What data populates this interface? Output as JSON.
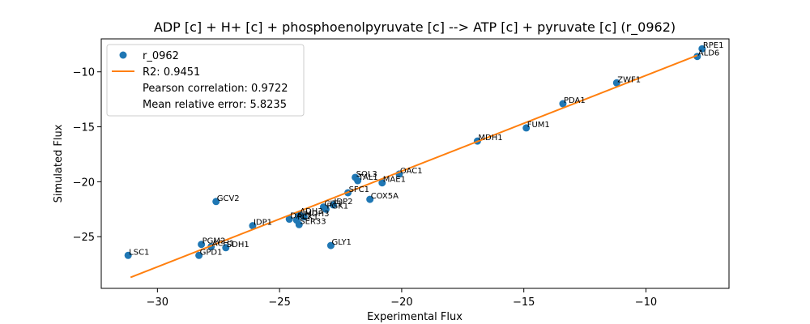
{
  "chart_data": {
    "type": "scatter",
    "title": "ADP [c] + H+ [c] + phosphoenolpyruvate [c] --> ATP [c] + pyruvate [c] (r_0962)",
    "xlabel": "Experimental Flux",
    "ylabel": "Simulated Flux",
    "xlim": [
      -32.3,
      -6.6
    ],
    "ylim": [
      -29.7,
      -7.0
    ],
    "xticks": [
      -30,
      -25,
      -20,
      -15,
      -10
    ],
    "yticks": [
      -25,
      -20,
      -15,
      -10
    ],
    "xtick_labels": [
      "−30",
      "−25",
      "−20",
      "−15",
      "−10"
    ],
    "ytick_labels": [
      "−25",
      "−20",
      "−15",
      "−10"
    ],
    "colors": {
      "points": "#1f77b4",
      "fit": "#ff7f0e"
    },
    "fit_line": {
      "x": [
        -31.1,
        -7.9
      ],
      "y": [
        -28.7,
        -8.5
      ]
    },
    "legend": {
      "placement": "upper-left",
      "entries": [
        {
          "label": "r_0962",
          "marker": "point"
        },
        {
          "label": "R2: 0.9451",
          "marker": "line"
        },
        {
          "label": "Pearson correlation: 0.9722",
          "marker": "none"
        },
        {
          "label": "Mean relative error: 5.8235",
          "marker": "none"
        }
      ]
    },
    "points": [
      {
        "label": "RPE1",
        "x": -7.7,
        "y": -7.9
      },
      {
        "label": "ALD6",
        "x": -7.9,
        "y": -8.6
      },
      {
        "label": "ZWF1",
        "x": -11.2,
        "y": -11.0
      },
      {
        "label": "PDA1",
        "x": -13.4,
        "y": -12.9
      },
      {
        "label": "FUM1",
        "x": -14.9,
        "y": -15.1
      },
      {
        "label": "MDH1",
        "x": -16.9,
        "y": -16.3
      },
      {
        "label": "OAC1",
        "x": -20.1,
        "y": -19.3
      },
      {
        "label": "SOL3",
        "x": -21.9,
        "y": -19.6
      },
      {
        "label": "TAL1",
        "x": -21.8,
        "y": -19.9
      },
      {
        "label": "MAE1",
        "x": -20.8,
        "y": -20.1
      },
      {
        "label": "SFC1",
        "x": -22.2,
        "y": -21.0
      },
      {
        "label": "COX5A",
        "x": -21.3,
        "y": -21.6
      },
      {
        "label": "GCV2",
        "x": -27.6,
        "y": -21.8
      },
      {
        "label": "IDP2",
        "x": -22.8,
        "y": -22.1
      },
      {
        "label": "CIT1",
        "x": -23.2,
        "y": -22.3
      },
      {
        "label": "PGK1",
        "x": -23.1,
        "y": -22.5
      },
      {
        "label": "ADH3",
        "x": -24.2,
        "y": -23.0
      },
      {
        "label": "MDH3",
        "x": -24.0,
        "y": -23.2
      },
      {
        "label": "DAL7",
        "x": -24.6,
        "y": -23.4
      },
      {
        "label": "PCK1",
        "x": -24.3,
        "y": -23.5
      },
      {
        "label": "SER33",
        "x": -24.2,
        "y": -23.9
      },
      {
        "label": "IDP1",
        "x": -26.1,
        "y": -24.0
      },
      {
        "label": "GLY1",
        "x": -22.9,
        "y": -25.8
      },
      {
        "label": "PGM2",
        "x": -28.2,
        "y": -25.7
      },
      {
        "label": "ACH1",
        "x": -27.8,
        "y": -25.9
      },
      {
        "label": "SDH1",
        "x": -27.2,
        "y": -26.0
      },
      {
        "label": "GPD1",
        "x": -28.3,
        "y": -26.7
      },
      {
        "label": "LSC1",
        "x": -31.2,
        "y": -26.7
      }
    ]
  }
}
